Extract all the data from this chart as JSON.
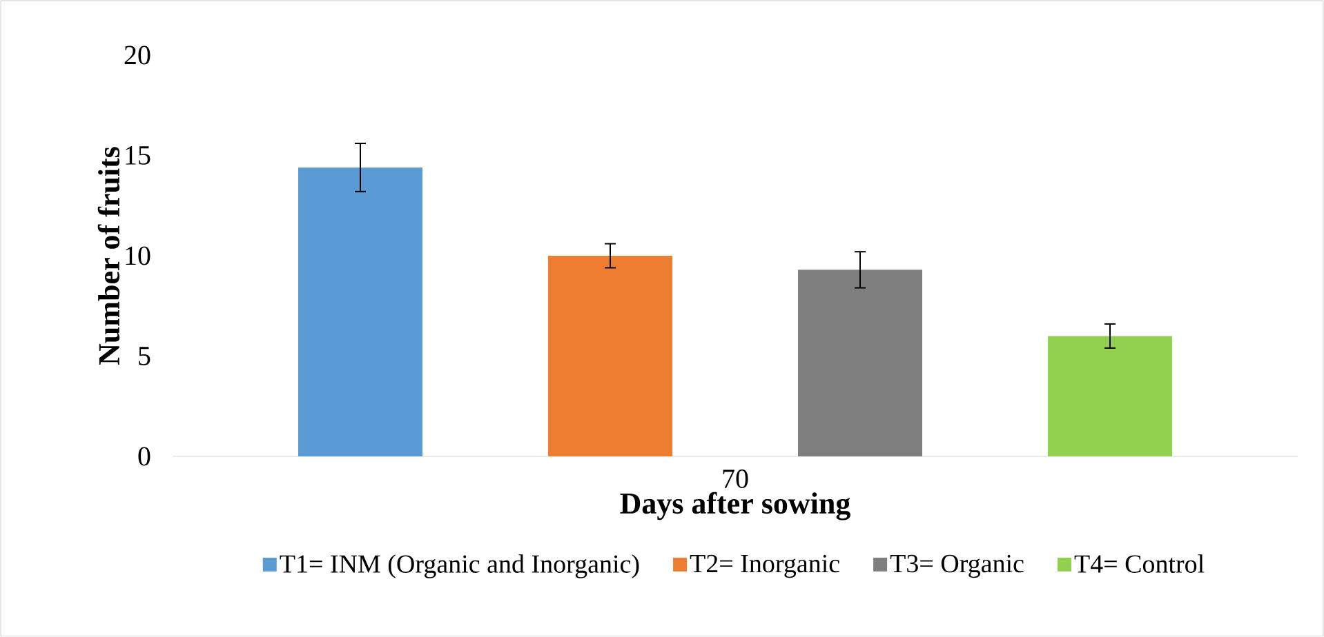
{
  "chart_data": {
    "type": "bar",
    "xlabel": "Days after sowing",
    "ylabel": "Number of fruits",
    "categories": [
      "70"
    ],
    "series": [
      {
        "name": "T1= INM (Organic and Inorganic)",
        "color": "#5b9bd5",
        "values": [
          14.4
        ],
        "errors": [
          1.2
        ]
      },
      {
        "name": "T2= Inorganic",
        "color": "#ed7d31",
        "values": [
          10.0
        ],
        "errors": [
          0.6
        ]
      },
      {
        "name": "T3= Organic",
        "color": "#7f7f7f",
        "values": [
          9.3
        ],
        "errors": [
          0.9
        ]
      },
      {
        "name": "T4= Control",
        "color": "#92d050",
        "values": [
          6.0
        ],
        "errors": [
          0.6
        ]
      }
    ],
    "ylim": [
      0,
      20
    ],
    "yticks": [
      0,
      5,
      10,
      15,
      20
    ],
    "legend": "bottom"
  }
}
